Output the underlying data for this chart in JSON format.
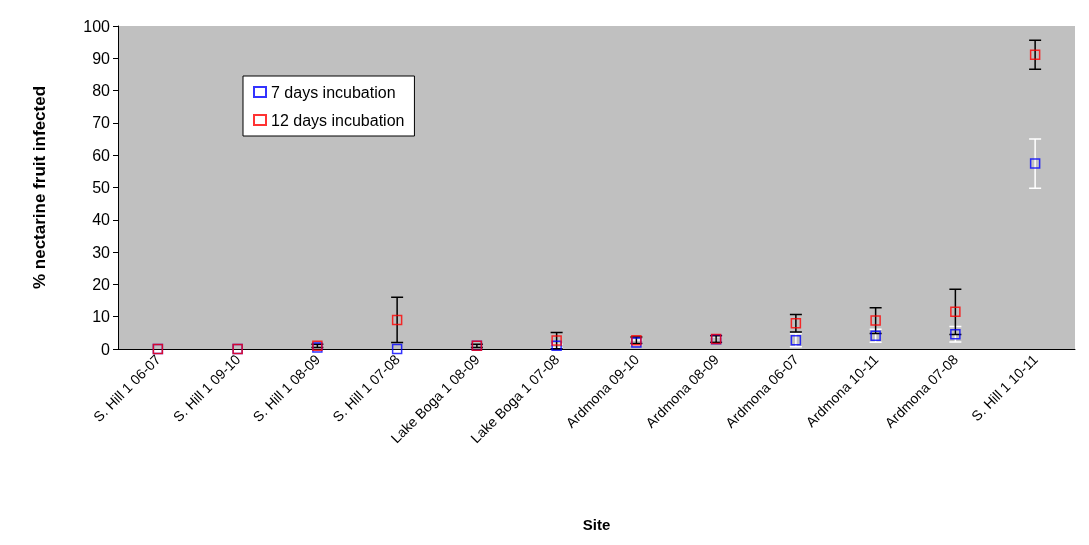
{
  "chart_data": {
    "type": "scatter",
    "xlabel": "Site",
    "ylabel": "% nectarine fruit infected",
    "categories": [
      "S. Hill 1 06-07",
      "S. Hill 1 09-10",
      "S. Hill 1 08-09",
      "S. Hill 1 07-08",
      "Lake Boga 1 08-09",
      "Lake Boga 1 07-08",
      "Ardmona 09-10",
      "Ardmona 08-09",
      "Ardmona 06-07",
      "Ardmona 10-11",
      "Ardmona 07-08",
      "S. Hill 1 10-11"
    ],
    "series": [
      {
        "name": "7 days incubation",
        "color": "#0000ff",
        "values": [
          0,
          0,
          0.5,
          0,
          1,
          1,
          2,
          3,
          2.7,
          4.1,
          4.6,
          57.4
        ],
        "errors": [
          null,
          null,
          null,
          null,
          null,
          0.5,
          0.8,
          0.8,
          2,
          2,
          2.4,
          7.6
        ]
      },
      {
        "name": "12 days incubation",
        "color": "#ff0000",
        "values": [
          0,
          0,
          1,
          9,
          1,
          2.6,
          2.7,
          3.1,
          8,
          8.8,
          11.5,
          91.1
        ],
        "errors": [
          null,
          null,
          0.5,
          7,
          0.5,
          2.5,
          1,
          1,
          2.7,
          4,
          7,
          4.5
        ]
      }
    ],
    "ylim": [
      0,
      100
    ],
    "yticks": [
      0,
      10,
      20,
      30,
      40,
      50,
      60,
      70,
      80,
      90,
      100
    ],
    "grid": false,
    "legend": "top left",
    "marker": "square"
  }
}
